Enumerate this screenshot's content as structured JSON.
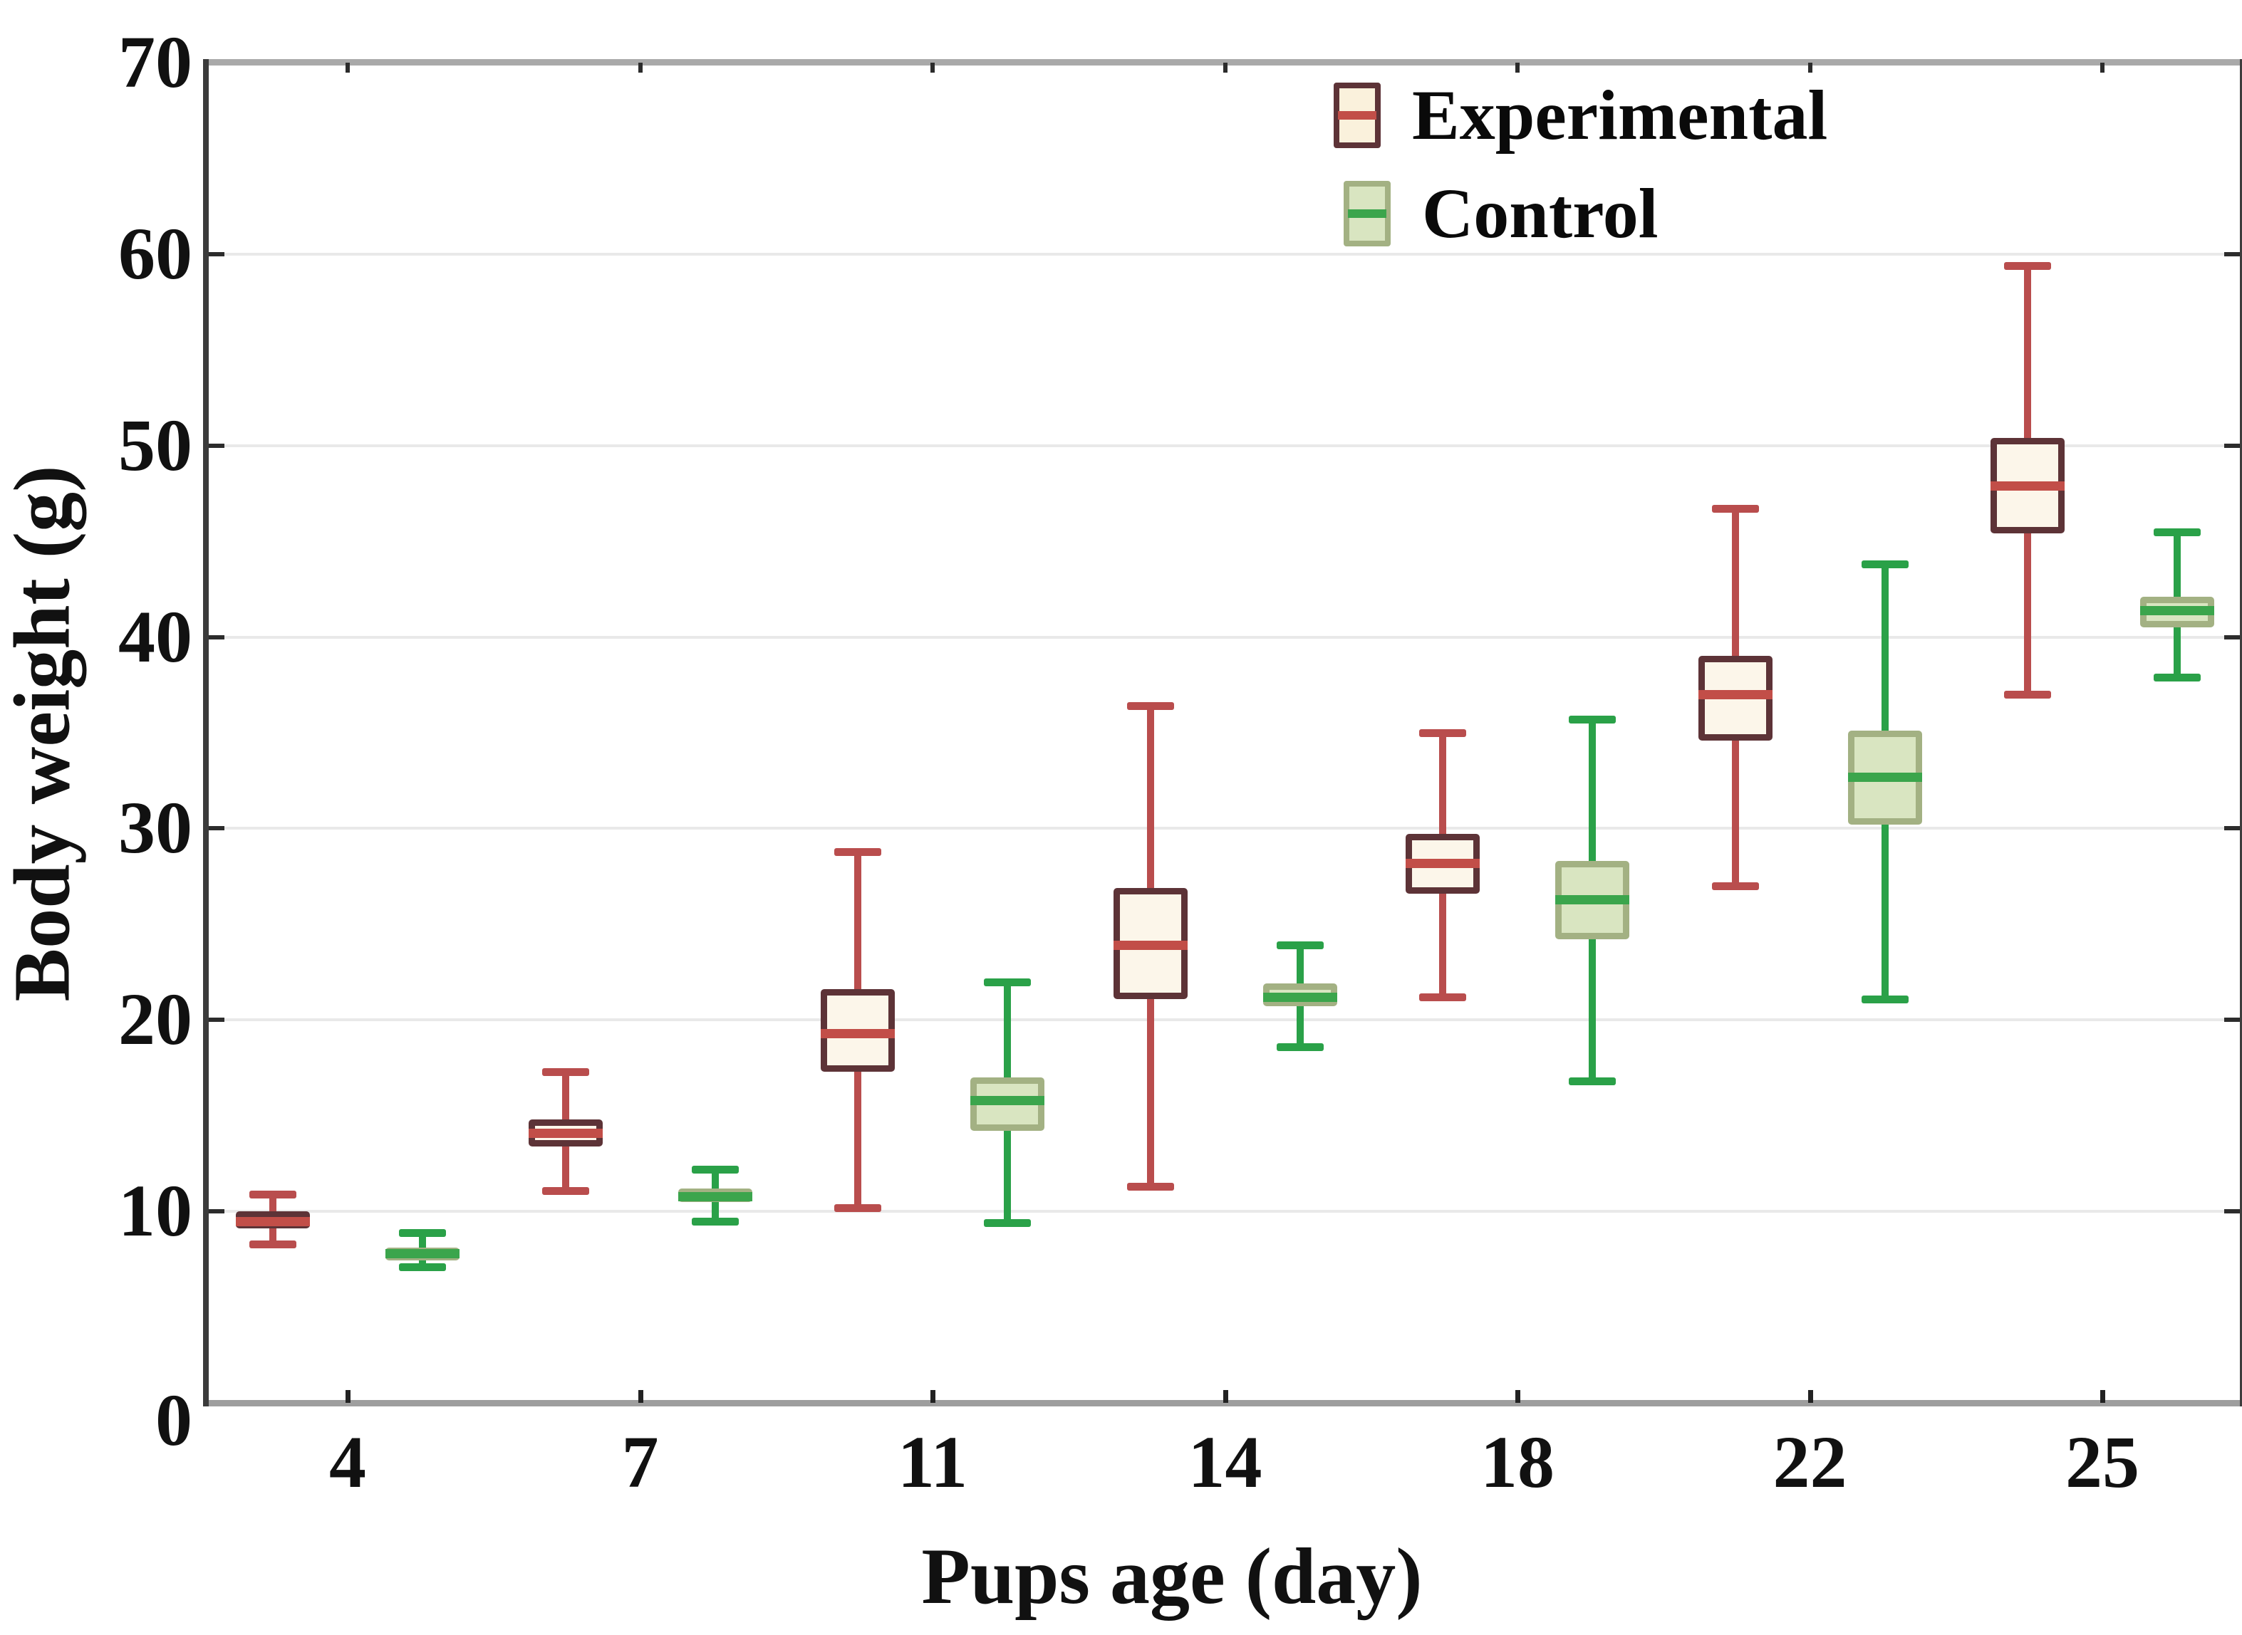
{
  "legend": {
    "items": [
      {
        "key": "experimental",
        "label": "Experimental"
      },
      {
        "key": "control",
        "label": "Control"
      }
    ]
  },
  "axes": {
    "y": {
      "title": "Body weight (g)",
      "min": 0,
      "max": 70,
      "ticks": [
        0,
        10,
        20,
        30,
        40,
        50,
        60,
        70
      ]
    },
    "x": {
      "title": "Pups age (day)",
      "ticks": [
        4,
        7,
        11,
        14,
        18,
        22,
        25
      ]
    }
  },
  "chart_data": {
    "type": "boxplot",
    "title": "",
    "xlabel": "Pups age (day)",
    "ylabel": "Body weight (g)",
    "categories": [
      4,
      7,
      11,
      14,
      18,
      22,
      25
    ],
    "ylim": [
      0,
      70
    ],
    "grid": "horizontal-light-gray",
    "legend_position": "top-right-inside",
    "series": [
      {
        "name": "Experimental",
        "colors": {
          "fill": "#fcf6ea",
          "border": "#5d3337",
          "median": "#c24e48",
          "whisker": "#b94d4d"
        },
        "boxes": [
          {
            "category": 4,
            "low": 8.3,
            "q1": 9.1,
            "median": 9.5,
            "q3": 10.0,
            "high": 10.9
          },
          {
            "category": 7,
            "low": 11.1,
            "q1": 13.4,
            "median": 14.1,
            "q3": 14.8,
            "high": 17.3
          },
          {
            "category": 11,
            "low": 10.2,
            "q1": 17.3,
            "median": 19.3,
            "q3": 21.6,
            "high": 28.8
          },
          {
            "category": 14,
            "low": 11.3,
            "q1": 21.1,
            "median": 23.9,
            "q3": 26.9,
            "high": 36.4
          },
          {
            "category": 18,
            "low": 21.2,
            "q1": 26.6,
            "median": 28.2,
            "q3": 29.7,
            "high": 35.0
          },
          {
            "category": 22,
            "low": 27.0,
            "q1": 34.6,
            "median": 37.0,
            "q3": 39.0,
            "high": 46.7
          },
          {
            "category": 25,
            "low": 37.0,
            "q1": 45.4,
            "median": 47.9,
            "q3": 50.4,
            "high": 59.4
          }
        ]
      },
      {
        "name": "Control",
        "colors": {
          "fill": "#d9e5c1",
          "border": "#a3b183",
          "median": "#3ba54c",
          "whisker": "#2aa148"
        },
        "boxes": [
          {
            "category": 4,
            "low": 7.1,
            "q1": 7.5,
            "median": 7.8,
            "q3": 8.1,
            "high": 8.9
          },
          {
            "category": 7,
            "low": 9.5,
            "q1": 10.5,
            "median": 10.8,
            "q3": 11.2,
            "high": 12.2
          },
          {
            "category": 11,
            "low": 9.4,
            "q1": 14.2,
            "median": 15.8,
            "q3": 17.0,
            "high": 22.0
          },
          {
            "category": 14,
            "low": 18.6,
            "q1": 20.7,
            "median": 21.2,
            "q3": 21.9,
            "high": 23.9
          },
          {
            "category": 18,
            "low": 16.8,
            "q1": 24.2,
            "median": 26.3,
            "q3": 28.3,
            "high": 35.7
          },
          {
            "category": 22,
            "low": 21.1,
            "q1": 30.2,
            "median": 32.7,
            "q3": 35.1,
            "high": 43.8
          },
          {
            "category": 25,
            "low": 37.9,
            "q1": 40.5,
            "median": 41.4,
            "q3": 42.1,
            "high": 45.5
          }
        ]
      }
    ]
  }
}
